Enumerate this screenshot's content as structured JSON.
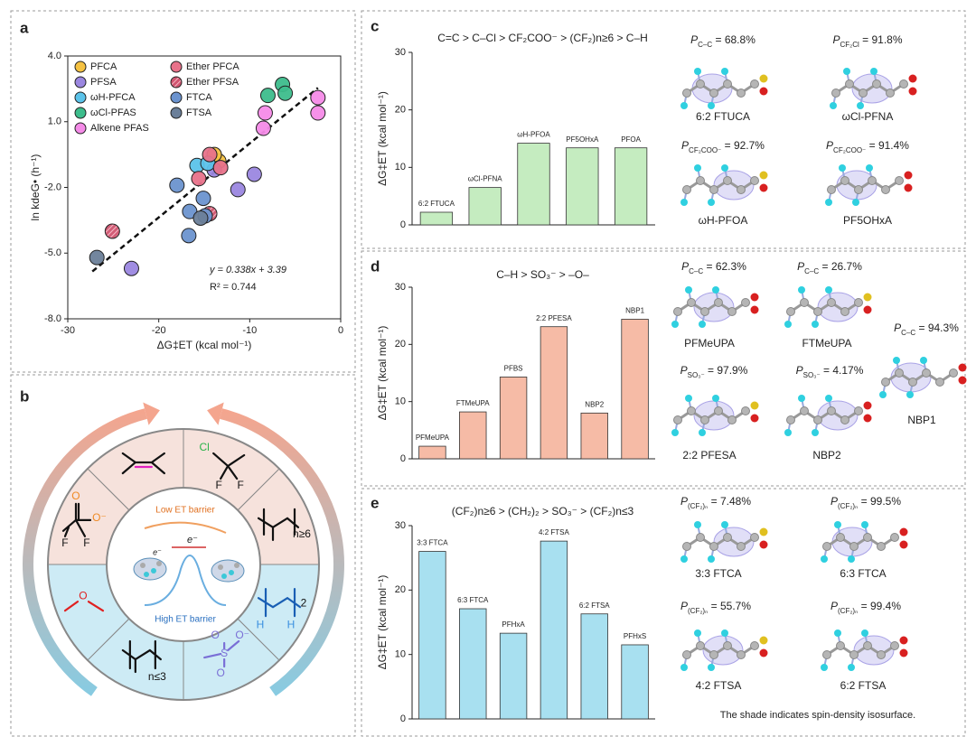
{
  "panel_labels": [
    "a",
    "b",
    "c",
    "d",
    "e"
  ],
  "chart_data": [
    {
      "type": "scatter",
      "xlabel": "ΔG‡ET (kcal mol⁻¹)",
      "ylabel": "ln kdeG• (h⁻¹)",
      "xlim": [
        -30,
        0
      ],
      "ylim": [
        -8,
        4
      ],
      "xticks": [
        -30,
        -20,
        -10,
        0
      ],
      "yticks": [
        {
          "value": 4,
          "label": "4.0"
        },
        {
          "value": 1,
          "label": "1.0"
        },
        {
          "value": -2,
          "label": "-2.0"
        },
        {
          "value": -5,
          "label": "-5.0"
        },
        {
          "value": -8,
          "label": "-8.0"
        }
      ],
      "legend": "upper left",
      "series": [
        {
          "name": "PFCA",
          "color": "#f5c242",
          "x": [
            -13.4,
            -13.9
          ],
          "values": [
            -0.8,
            -0.5
          ]
        },
        {
          "name": "PFSA",
          "color": "#9b87e0",
          "x": [
            -23.0,
            -11.3,
            -9.5,
            -13.9
          ],
          "values": [
            -5.7,
            -2.1,
            -1.4,
            -1.2
          ]
        },
        {
          "name": "ωH-PFCA",
          "color": "#5bc3ea",
          "x": [
            -15.8,
            -14.6
          ],
          "values": [
            -1.0,
            -0.9
          ]
        },
        {
          "name": "ωCl-PFAS",
          "color": "#3dbd8c",
          "x": [
            -8.0,
            -6.4,
            -6.1
          ],
          "values": [
            2.2,
            2.7,
            2.3
          ]
        },
        {
          "name": "Alkene PFAS",
          "color": "#f58be8",
          "x": [
            -8.5,
            -8.3,
            -2.5,
            -2.5
          ],
          "values": [
            0.7,
            1.4,
            2.1,
            1.4
          ]
        },
        {
          "name": "Ether PFCA",
          "color": "#e8728a",
          "x": [
            -15.6,
            -14.4,
            -13.2
          ],
          "values": [
            -1.6,
            -0.5,
            -1.1
          ]
        },
        {
          "name": "Ether PFSA",
          "color": "#d0546f",
          "hatch": true,
          "x": [
            -25.1,
            -14.4
          ],
          "values": [
            -4.0,
            -3.2
          ]
        },
        {
          "name": "FTCA",
          "color": "#6b93cf",
          "x": [
            -18.0,
            -16.6,
            -16.7,
            -15.1,
            -14.9
          ],
          "values": [
            -1.9,
            -3.1,
            -4.2,
            -2.5,
            -3.3
          ]
        },
        {
          "name": "FTSA",
          "color": "#6b7f99",
          "x": [
            -26.8,
            -15.4
          ],
          "values": [
            -5.2,
            -3.4
          ]
        }
      ],
      "fit": {
        "slope": 0.338,
        "intercept": 3.39,
        "x": [
          -27.3,
          -2.5
        ]
      },
      "annotations": [
        "y = 0.338x + 3.39",
        "R² = 0.744"
      ]
    },
    {
      "type": "bar",
      "title": "C=C > C–Cl > CF₂COO⁻ > (CF₂)n≥6 > C–H",
      "ylabel": "ΔG‡ET (kcal mol⁻¹)",
      "categories": [
        "6:2 FTUCA",
        "ωCl-PFNA",
        "ωH-PFOA",
        "PF5OHxA",
        "PFOA"
      ],
      "values": [
        2.2,
        6.5,
        14.2,
        13.4,
        13.4
      ],
      "color": "#c5ecc0",
      "ylim": [
        0,
        30
      ],
      "yticks": [
        0,
        10,
        20,
        30
      ]
    },
    {
      "type": "bar",
      "title": "C–H > SO₃⁻ > –O–",
      "ylabel": "ΔG‡ET (kcal mol⁻¹)",
      "categories": [
        "PFMeUPA",
        "FTMeUPA",
        "PFBS",
        "2:2 PFESA",
        "NBP2",
        "NBP1"
      ],
      "values": [
        2.2,
        8.2,
        14.3,
        23.1,
        8.0,
        24.4
      ],
      "color": "#f6bba6",
      "ylim": [
        0,
        30
      ],
      "yticks": [
        0,
        10,
        20,
        30
      ]
    },
    {
      "type": "bar",
      "title": "(CF₂)n≥6 > (CH₂)₂ > SO₃⁻ > (CF₂)n≤3",
      "ylabel": "ΔG‡ET (kcal mol⁻¹)",
      "categories": [
        "3:3 FTCA",
        "6:3 FTCA",
        "PFHxA",
        "4:2 FTSA",
        "6:2 FTSA",
        "PFHxS"
      ],
      "values": [
        26.0,
        17.1,
        13.3,
        27.6,
        16.3,
        11.5
      ],
      "color": "#a8e0f0",
      "ylim": [
        0,
        30
      ],
      "yticks": [
        0,
        10,
        20,
        30
      ]
    }
  ],
  "diagram": {
    "low": "Low ET barrier",
    "high": "High ET barrier",
    "electron": "e⁻",
    "sectors": [
      [],
      [
        "Cl",
        "F",
        "F"
      ],
      [
        "n≥6"
      ],
      [
        "H",
        "H",
        "2"
      ],
      [
        "O",
        "S",
        "O",
        "O⁻"
      ],
      [
        "n≤3"
      ],
      [
        "O"
      ],
      [
        "O",
        "O⁻",
        "F",
        "F"
      ]
    ]
  },
  "structures": {
    "symbol": "P",
    "c": [
      {
        "sub": "C–C",
        "rest": " = 68.8%",
        "name": "6:2 FTUCA"
      },
      {
        "sub": "CF₂Cl",
        "rest": " = 91.8%",
        "name": "ωCl-PFNA"
      },
      {
        "sub": "CF₂COO⁻",
        "rest": " = 92.7%",
        "name": "ωH-PFOA"
      },
      {
        "sub": "CF₂COO⁻",
        "rest": " = 91.4%",
        "name": "PF5OHxA"
      }
    ],
    "d": [
      {
        "sub": "C–C",
        "rest": " = 62.3%",
        "name": "PFMeUPA"
      },
      {
        "sub": "C–C",
        "rest": " = 26.7%",
        "name": "FTMeUPA"
      },
      {
        "sub": "C–C",
        "rest": " = 94.3%",
        "name": "NBP1"
      },
      {
        "sub": "SO₃⁻",
        "rest": " = 97.9%",
        "name": "2:2 PFESA"
      },
      {
        "sub": "SO₃⁻",
        "rest": " = 4.17%",
        "name": "NBP2"
      }
    ],
    "e": [
      {
        "sub": "(CF₂)ₙ",
        "rest": " = 7.48%",
        "name": "3:3 FTCA"
      },
      {
        "sub": "(CF₂)ₙ",
        "rest": " = 99.5%",
        "name": "6:3 FTCA"
      },
      {
        "sub": "(CF₂)ₙ",
        "rest": " = 55.7%",
        "name": "4:2 FTSA"
      },
      {
        "sub": "(CF₂)ₙ",
        "rest": " = 99.4%",
        "name": "6:2 FTSA"
      }
    ],
    "note": "The shade indicates spin-density isosurface."
  }
}
